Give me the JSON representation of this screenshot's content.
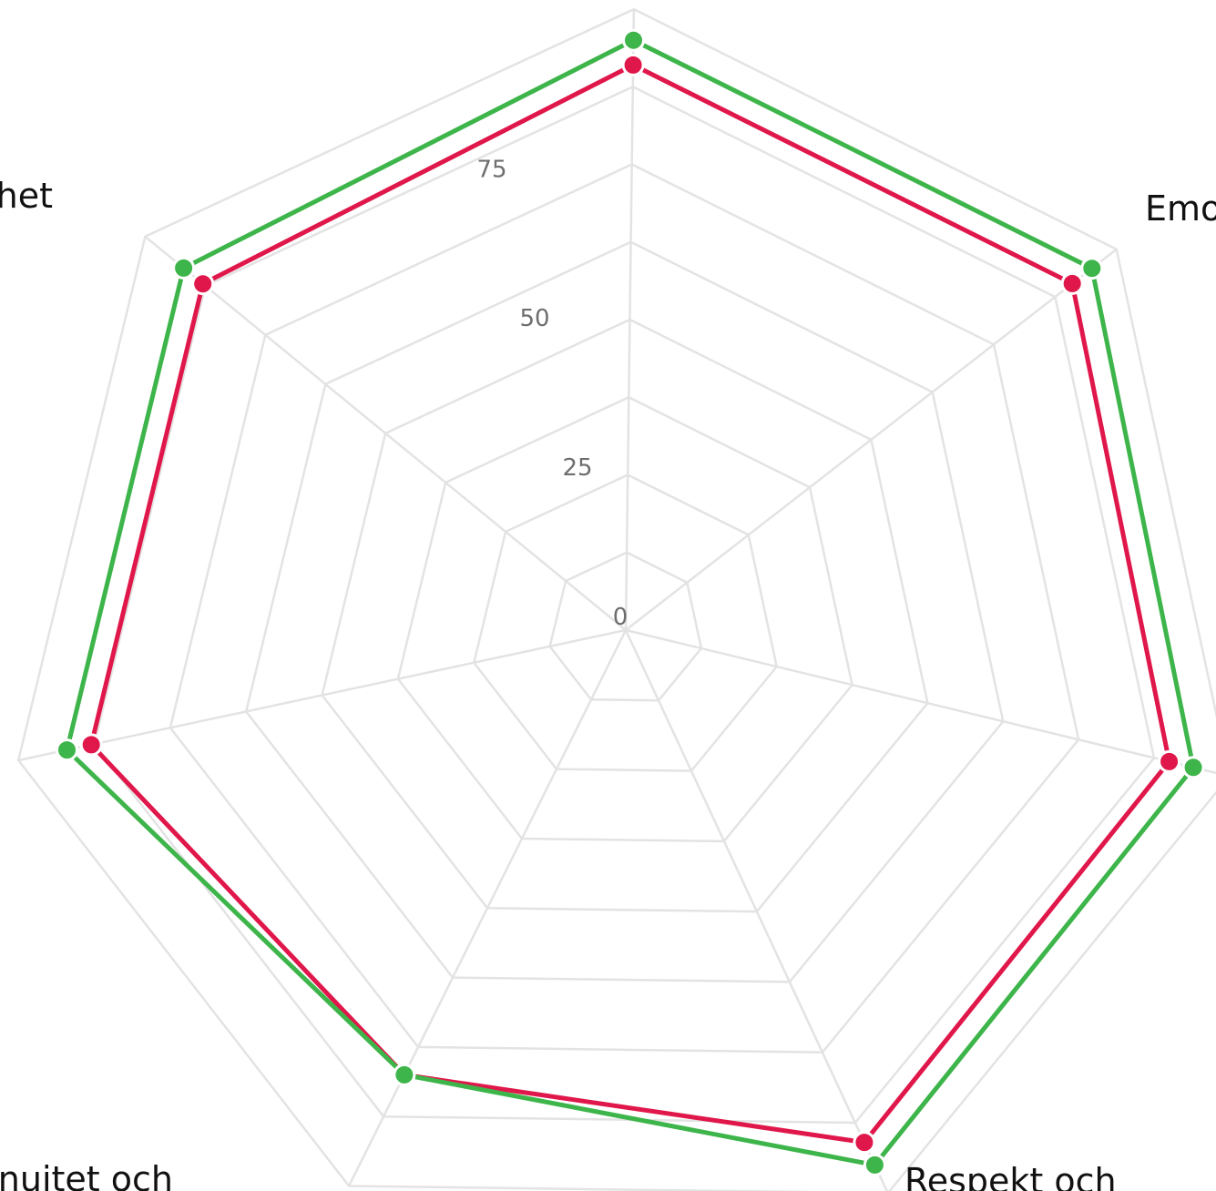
{
  "chart_data": {
    "type": "radar",
    "axes": [
      "",
      "Emo",
      "",
      "Respekt och",
      "nuitet och",
      "",
      "het"
    ],
    "ticks": [
      0,
      25,
      50,
      75
    ],
    "range": [
      0,
      100
    ],
    "grid": true,
    "series": [
      {
        "color": "#e0174a",
        "values": [
          91,
          91,
          90,
          91,
          80,
          88,
          88
        ]
      },
      {
        "color": "#3db54a",
        "values": [
          95,
          95,
          94,
          95,
          80,
          92,
          92
        ]
      }
    ]
  }
}
